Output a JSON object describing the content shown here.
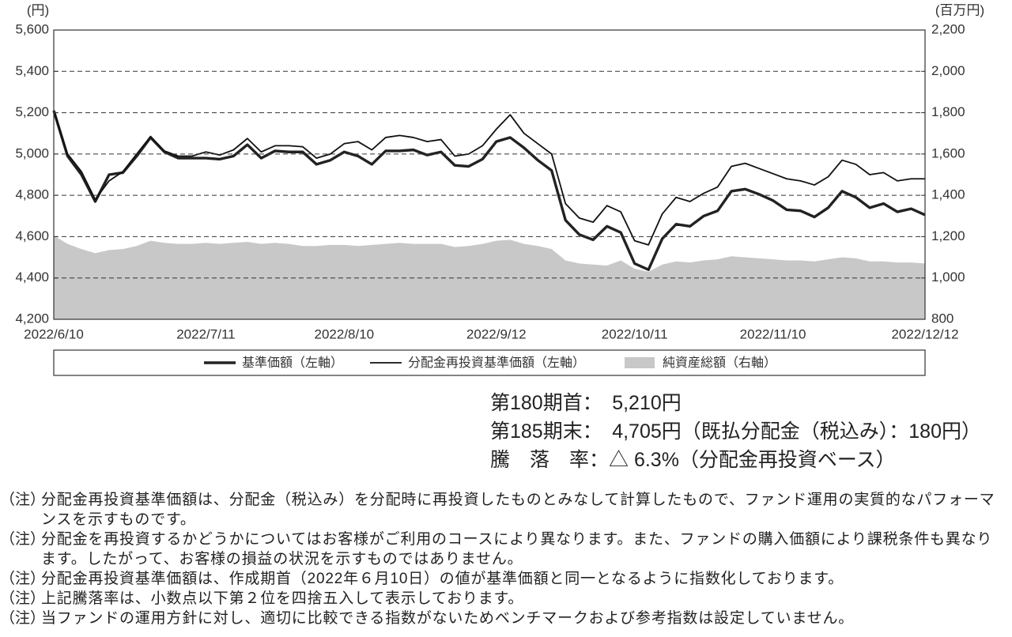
{
  "chart_data": {
    "type": "line",
    "y_unit": "(円)",
    "y2_unit": "(百万円)",
    "categories": [
      "2022/6/10",
      null,
      null,
      null,
      null,
      null,
      null,
      null,
      null,
      null,
      null,
      "2022/7/11",
      null,
      null,
      null,
      null,
      null,
      null,
      null,
      null,
      null,
      "2022/8/10",
      null,
      null,
      null,
      null,
      null,
      null,
      null,
      null,
      null,
      null,
      "2022/9/12",
      null,
      null,
      null,
      null,
      null,
      null,
      null,
      null,
      null,
      "2022/10/11",
      null,
      null,
      null,
      null,
      null,
      null,
      null,
      null,
      null,
      "2022/11/10",
      null,
      null,
      null,
      null,
      null,
      null,
      null,
      null,
      null,
      null,
      "2022/12/12"
    ],
    "series": [
      {
        "name": "基準価額（左軸）",
        "type": "line",
        "color": "#222222",
        "values": [
          5210,
          4990,
          4900,
          4770,
          4900,
          4910,
          4990,
          5080,
          5010,
          4980,
          4980,
          4980,
          4975,
          4990,
          5045,
          4980,
          5015,
          5010,
          5010,
          4950,
          4970,
          5010,
          4990,
          4950,
          5015,
          5015,
          5020,
          4995,
          5010,
          4945,
          4940,
          4975,
          5060,
          5080,
          5030,
          4970,
          4920,
          4680,
          4610,
          4585,
          4650,
          4620,
          4470,
          4440,
          4590,
          4660,
          4650,
          4700,
          4725,
          4820,
          4830,
          4805,
          4775,
          4730,
          4725,
          4695,
          4740,
          4820,
          4790,
          4740,
          4760,
          4720,
          4735,
          4705
        ]
      },
      {
        "name": "分配金再投資基準価額（左軸）",
        "type": "line",
        "color": "#111111",
        "values": [
          5210,
          5000,
          4915,
          4780,
          4870,
          4915,
          5000,
          5085,
          5015,
          4990,
          4990,
          5010,
          4995,
          5020,
          5075,
          5010,
          5040,
          5040,
          5035,
          4980,
          5000,
          5050,
          5060,
          5020,
          5080,
          5090,
          5080,
          5060,
          5070,
          4990,
          5000,
          5040,
          5120,
          5190,
          5100,
          5050,
          5000,
          4760,
          4690,
          4670,
          4750,
          4720,
          4580,
          4560,
          4710,
          4790,
          4770,
          4810,
          4840,
          4940,
          4955,
          4930,
          4905,
          4880,
          4870,
          4850,
          4890,
          4970,
          4950,
          4900,
          4910,
          4870,
          4880,
          4880
        ]
      },
      {
        "name": "純資産総額（右軸）",
        "type": "area",
        "axis": "y2",
        "color": "#c8c8c8",
        "values": [
          1205,
          1165,
          1140,
          1120,
          1135,
          1140,
          1155,
          1180,
          1170,
          1165,
          1165,
          1170,
          1165,
          1170,
          1175,
          1165,
          1170,
          1165,
          1155,
          1155,
          1160,
          1160,
          1155,
          1160,
          1165,
          1170,
          1165,
          1165,
          1165,
          1150,
          1155,
          1165,
          1180,
          1185,
          1165,
          1155,
          1140,
          1085,
          1070,
          1065,
          1060,
          1085,
          1045,
          1030,
          1065,
          1080,
          1075,
          1085,
          1090,
          1105,
          1100,
          1095,
          1090,
          1085,
          1085,
          1080,
          1090,
          1100,
          1095,
          1080,
          1080,
          1075,
          1075,
          1070
        ]
      }
    ],
    "ylim": [
      4200,
      5600
    ],
    "yticks": [
      {
        "value": 4200,
        "label": "4,200"
      },
      {
        "value": 4400,
        "label": "4,400"
      },
      {
        "value": 4600,
        "label": "4,600"
      },
      {
        "value": 4800,
        "label": "4,800"
      },
      {
        "value": 5000,
        "label": "5,000"
      },
      {
        "value": 5200,
        "label": "5,200"
      },
      {
        "value": 5400,
        "label": "5,400"
      },
      {
        "value": 5600,
        "label": "5,600"
      }
    ],
    "y2lim": [
      800,
      2200
    ],
    "y2ticks": [
      800,
      {
        "value": 1000,
        "label": "1,000"
      },
      {
        "value": 1200,
        "label": "1,200"
      },
      {
        "value": 1400,
        "label": "1,400"
      },
      {
        "value": 1600,
        "label": "1,600"
      },
      {
        "value": 1800,
        "label": "1,800"
      },
      {
        "value": 2000,
        "label": "2,000"
      },
      {
        "value": 2200,
        "label": "2,200"
      }
    ],
    "grid": true,
    "legend": "bottom"
  },
  "summary": [
    "第180期首：　5,210円",
    "第185期末：　4,705円（既払分配金（税込み）：180円）",
    "騰　落　率：△ 6.3%（分配金再投資ベース）"
  ],
  "notes": [
    {
      "label": "（注）",
      "text": "分配金再投資基準価額は、分配金（税込み）を分配時に再投資したものとみなして計算したもので、ファンド運用の実質的なパフォーマンスを示すものです。"
    },
    {
      "label": "（注）",
      "text": "分配金を再投資するかどうかについてはお客様がご利用のコースにより異なります。また、ファンドの購入価額により課税条件も異なります。したがって、お客様の損益の状況を示すものではありません。"
    },
    {
      "label": "（注）",
      "text": "分配金再投資基準価額は、作成期首（2022年６月10日）の値が基準価額と同一となるように指数化しております。"
    },
    {
      "label": "（注）",
      "text": "上記騰落率は、小数点以下第２位を四捨五入して表示しております。"
    },
    {
      "label": "（注）",
      "text": "当ファンドの運用方針に対し、適切に比較できる指数がないためベンチマークおよび参考指数は設定していません。"
    }
  ]
}
